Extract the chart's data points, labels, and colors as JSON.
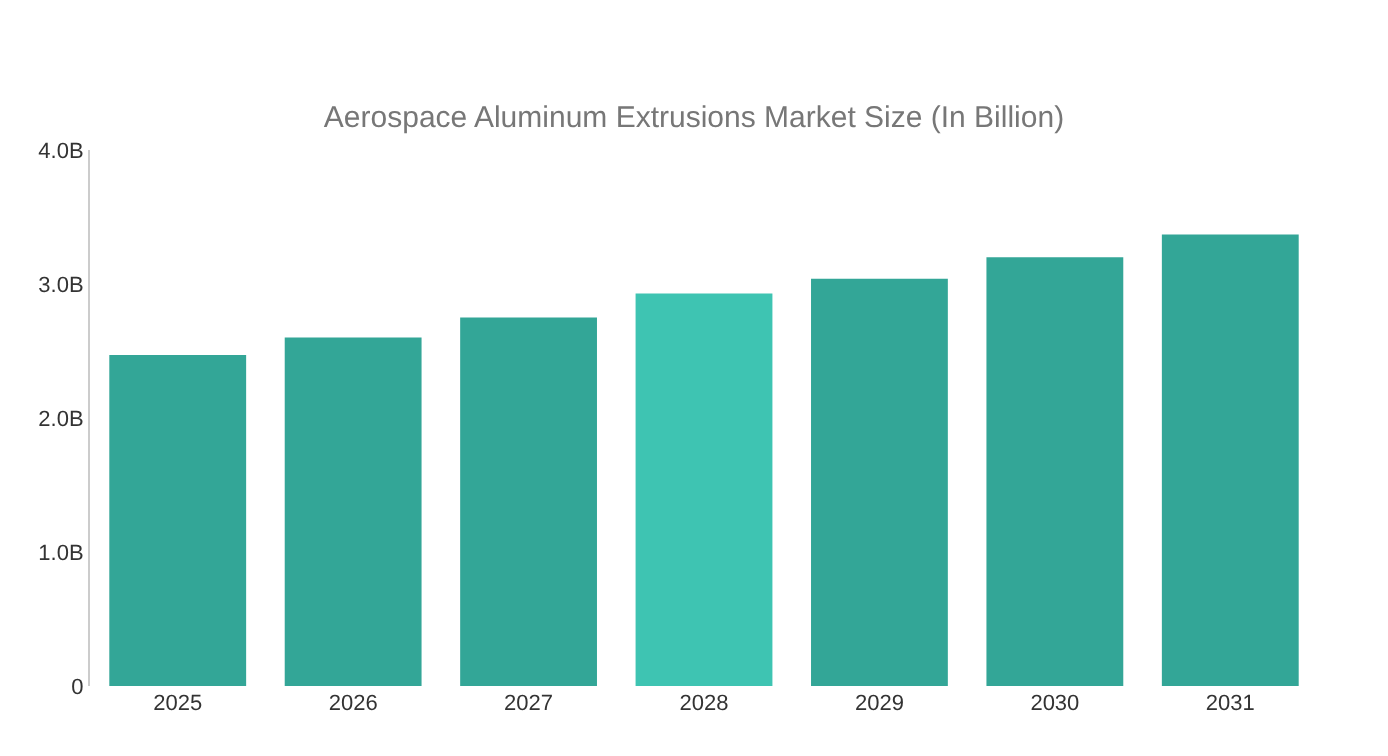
{
  "chart_data": {
    "type": "bar",
    "title": "Aerospace Aluminum Extrusions Market Size (In Billion)",
    "categories": [
      "2025",
      "2026",
      "2027",
      "2028",
      "2029",
      "2030",
      "2031"
    ],
    "values": [
      2.47,
      2.6,
      2.75,
      2.93,
      3.04,
      3.2,
      3.37
    ],
    "colors": [
      "#33a697",
      "#33a697",
      "#33a697",
      "#3ec4b2",
      "#33a697",
      "#33a697",
      "#33a697"
    ],
    "ylim": [
      0,
      4.0
    ],
    "yticks": [
      {
        "value": 0,
        "label": "0"
      },
      {
        "value": 1,
        "label": "1.0B"
      },
      {
        "value": 2,
        "label": "2.0B"
      },
      {
        "value": 3,
        "label": "3.0B"
      },
      {
        "value": 4,
        "label": "4.0B"
      }
    ]
  }
}
